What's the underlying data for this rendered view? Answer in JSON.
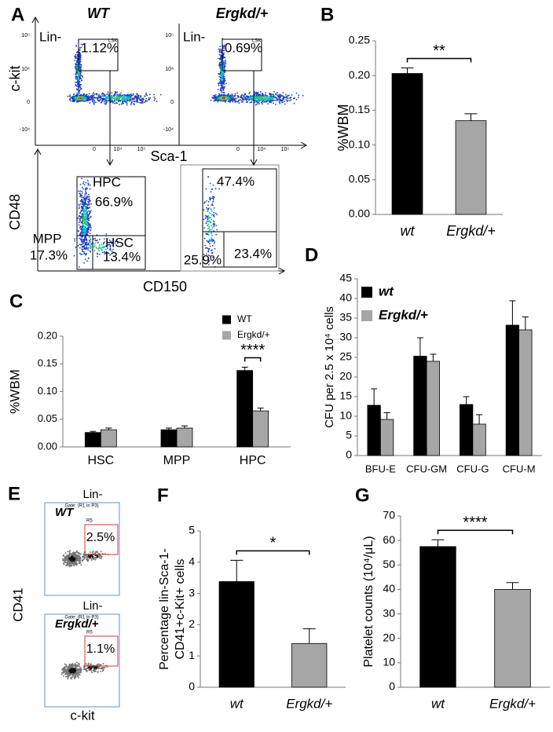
{
  "panel_labels": [
    "A",
    "B",
    "C",
    "D",
    "E",
    "F",
    "G"
  ],
  "flow_panels": {
    "A": {
      "top": [
        {
          "genotype": "WT",
          "gate": "Lin-",
          "gate_name": "LSK",
          "percent": "1.12%"
        },
        {
          "genotype": "Ergkd/+",
          "gate": "Lin-",
          "gate_name": "LSK",
          "percent": "0.69%"
        }
      ],
      "top_x_label": "Sca-1",
      "top_y_label": "c-kit",
      "y_ticks": [
        "10⁵",
        "10⁴",
        "0",
        "-10⁴"
      ],
      "x_ticks": [
        "0",
        "10⁴",
        "10⁵"
      ],
      "bottom": [
        {
          "gates": [
            {
              "name": "HPC",
              "percent": "66.9%"
            },
            {
              "name": "MPP",
              "percent": "17.3%"
            },
            {
              "name": "HSC",
              "percent": "13.4%"
            }
          ]
        },
        {
          "gates": [
            {
              "percent": "47.4%"
            },
            {
              "percent": "25.9%"
            },
            {
              "percent": "23.4%"
            }
          ]
        }
      ],
      "bottom_x_label": "CD150",
      "bottom_y_label": "CD48"
    },
    "E": {
      "plots": [
        {
          "title": "Lin-",
          "genotype": "WT",
          "gate": "Gate: (R1 in P3)",
          "region": "R5",
          "percent": "2.5%"
        },
        {
          "title": "Lin-",
          "genotype": "Ergkd/+",
          "gate": "Gate: (R1 in P3)",
          "region": "R5",
          "percent": "1.1%"
        }
      ],
      "x_label": "c-kit",
      "y_label": "CD41"
    }
  },
  "chart_data": [
    {
      "type": "bar",
      "y_label": "%WBM",
      "categories": [
        "wt",
        "Ergkd/+"
      ],
      "values": [
        0.203,
        0.135
      ],
      "errors": [
        0.008,
        0.01
      ],
      "colors": [
        "#000000",
        "#a6a6a6"
      ],
      "ylim": [
        0,
        0.25
      ],
      "yticks": [
        {
          "value": 0,
          "label": "0.00"
        },
        0.05,
        {
          "value": 0.1,
          "label": "0.10"
        },
        0.15,
        {
          "value": 0.2,
          "label": "0.20"
        },
        0.25
      ],
      "annotation": "**"
    },
    {
      "type": "grouped_bar",
      "y_label": "%WBM",
      "categories": [
        "HSC",
        "MPP",
        "HPC"
      ],
      "series": [
        {
          "name": "WT",
          "color": "#000000",
          "values": [
            0.026,
            0.031,
            0.138
          ],
          "errors": [
            0.002,
            0.003,
            0.006
          ]
        },
        {
          "name": "Ergkd/+",
          "color": "#a6a6a6",
          "values": [
            0.031,
            0.034,
            0.065
          ],
          "errors": [
            0.003,
            0.004,
            0.005
          ]
        }
      ],
      "ylim": [
        0,
        0.2
      ],
      "yticks": [
        {
          "value": 0,
          "label": "0.00"
        },
        0.05,
        {
          "value": 0.1,
          "label": "0.10"
        },
        0.15,
        {
          "value": 0.2,
          "label": "0.20"
        }
      ],
      "annotation": "****",
      "annotation_category": 2,
      "legend": "top-right"
    },
    {
      "type": "grouped_bar",
      "y_label": "CFU per 2.5 x 10⁴ cells",
      "categories": [
        "BFU-E",
        "CFU-GM",
        "CFU-G",
        "CFU-M"
      ],
      "series": [
        {
          "name": "wt",
          "color": "#000000",
          "values": [
            12.8,
            25.3,
            13,
            33.2
          ],
          "errors": [
            4.2,
            4.7,
            2,
            6.2
          ]
        },
        {
          "name": "Ergkd/+",
          "color": "#a6a6a6",
          "values": [
            9.2,
            24,
            8,
            32
          ],
          "errors": [
            1.7,
            1.8,
            2.4,
            3.3
          ]
        }
      ],
      "ylim": [
        0,
        45
      ],
      "yticks": [
        0,
        5,
        10,
        15,
        20,
        25,
        30,
        35,
        40,
        45
      ],
      "legend": "top-left"
    },
    {
      "type": "bar",
      "y_label": [
        "Percentage lin-Sca-1-",
        "CD41+c-Kit+ cells"
      ],
      "categories": [
        "wt",
        "Ergkd/+"
      ],
      "values": [
        3.38,
        1.4
      ],
      "errors": [
        0.68,
        0.47
      ],
      "colors": [
        "#000000",
        "#a6a6a6"
      ],
      "ylim": [
        0,
        5
      ],
      "yticks": [
        0,
        1,
        2,
        3,
        4,
        5
      ],
      "annotation": "*"
    },
    {
      "type": "bar",
      "y_label": "Platelet counts (10⁴/μL)",
      "categories": [
        "wt",
        "Ergkd/+"
      ],
      "values": [
        57.5,
        40
      ],
      "errors": [
        2.8,
        2.8
      ],
      "colors": [
        "#000000",
        "#a6a6a6"
      ],
      "ylim": [
        0,
        70
      ],
      "yticks": [
        0,
        10,
        20,
        30,
        40,
        50,
        60,
        70
      ],
      "annotation": "****"
    }
  ]
}
